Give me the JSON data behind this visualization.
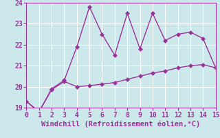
{
  "xlabel": "Windchill (Refroidissement éolien,°C)",
  "x_line1": [
    0,
    1,
    2,
    3,
    4,
    5,
    6,
    7,
    8,
    9,
    10,
    11,
    12,
    13,
    14,
    15
  ],
  "y_line1": [
    19.3,
    18.8,
    19.9,
    20.3,
    21.9,
    23.8,
    22.5,
    21.5,
    23.5,
    21.8,
    23.5,
    22.2,
    22.5,
    22.6,
    22.3,
    20.9
  ],
  "x_line2": [
    0,
    1,
    2,
    3,
    4,
    5,
    6,
    7,
    8,
    9,
    10,
    11,
    12,
    13,
    14,
    15
  ],
  "y_line2": [
    19.3,
    18.8,
    19.85,
    20.25,
    20.0,
    20.05,
    20.12,
    20.2,
    20.35,
    20.5,
    20.65,
    20.75,
    20.9,
    21.0,
    21.05,
    20.9
  ],
  "line_color": "#993399",
  "bg_color": "#cce8ea",
  "grid_color": "#b0d8dc",
  "xlim": [
    0,
    15
  ],
  "ylim": [
    19,
    24
  ],
  "yticks": [
    19,
    20,
    21,
    22,
    23,
    24
  ],
  "xticks": [
    0,
    1,
    2,
    3,
    4,
    5,
    6,
    7,
    8,
    9,
    10,
    11,
    12,
    13,
    14,
    15
  ],
  "markersize": 3,
  "linewidth": 1,
  "tick_fontsize": 7,
  "xlabel_fontsize": 7.5
}
